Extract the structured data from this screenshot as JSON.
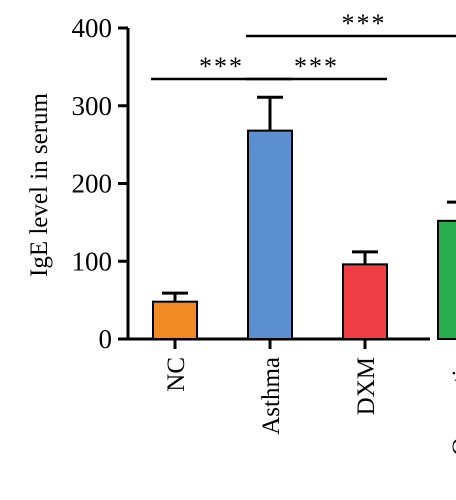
{
  "chart_data": {
    "type": "bar",
    "title": "",
    "xlabel": "",
    "ylabel": "IgE level in serum",
    "ylim": [
      0,
      400
    ],
    "yticks": [
      0,
      100,
      200,
      300,
      400
    ],
    "categories": [
      "NC",
      "Asthma",
      "DXM",
      "Quercetin"
    ],
    "values": [
      48,
      268,
      96,
      152
    ],
    "errors": [
      11,
      43,
      16,
      24
    ],
    "colors": [
      "#f28a23",
      "#5b8fd0",
      "#ee3e43",
      "#27ad4d"
    ],
    "grid": false,
    "legend": "none",
    "significance": [
      {
        "from": "NC",
        "to": "Asthma",
        "label": "***",
        "level": 1
      },
      {
        "from": "Asthma",
        "to": "DXM",
        "label": "***",
        "level": 1
      },
      {
        "from": "Asthma",
        "to": "Quercetin",
        "label": "***",
        "level": 2
      }
    ]
  }
}
